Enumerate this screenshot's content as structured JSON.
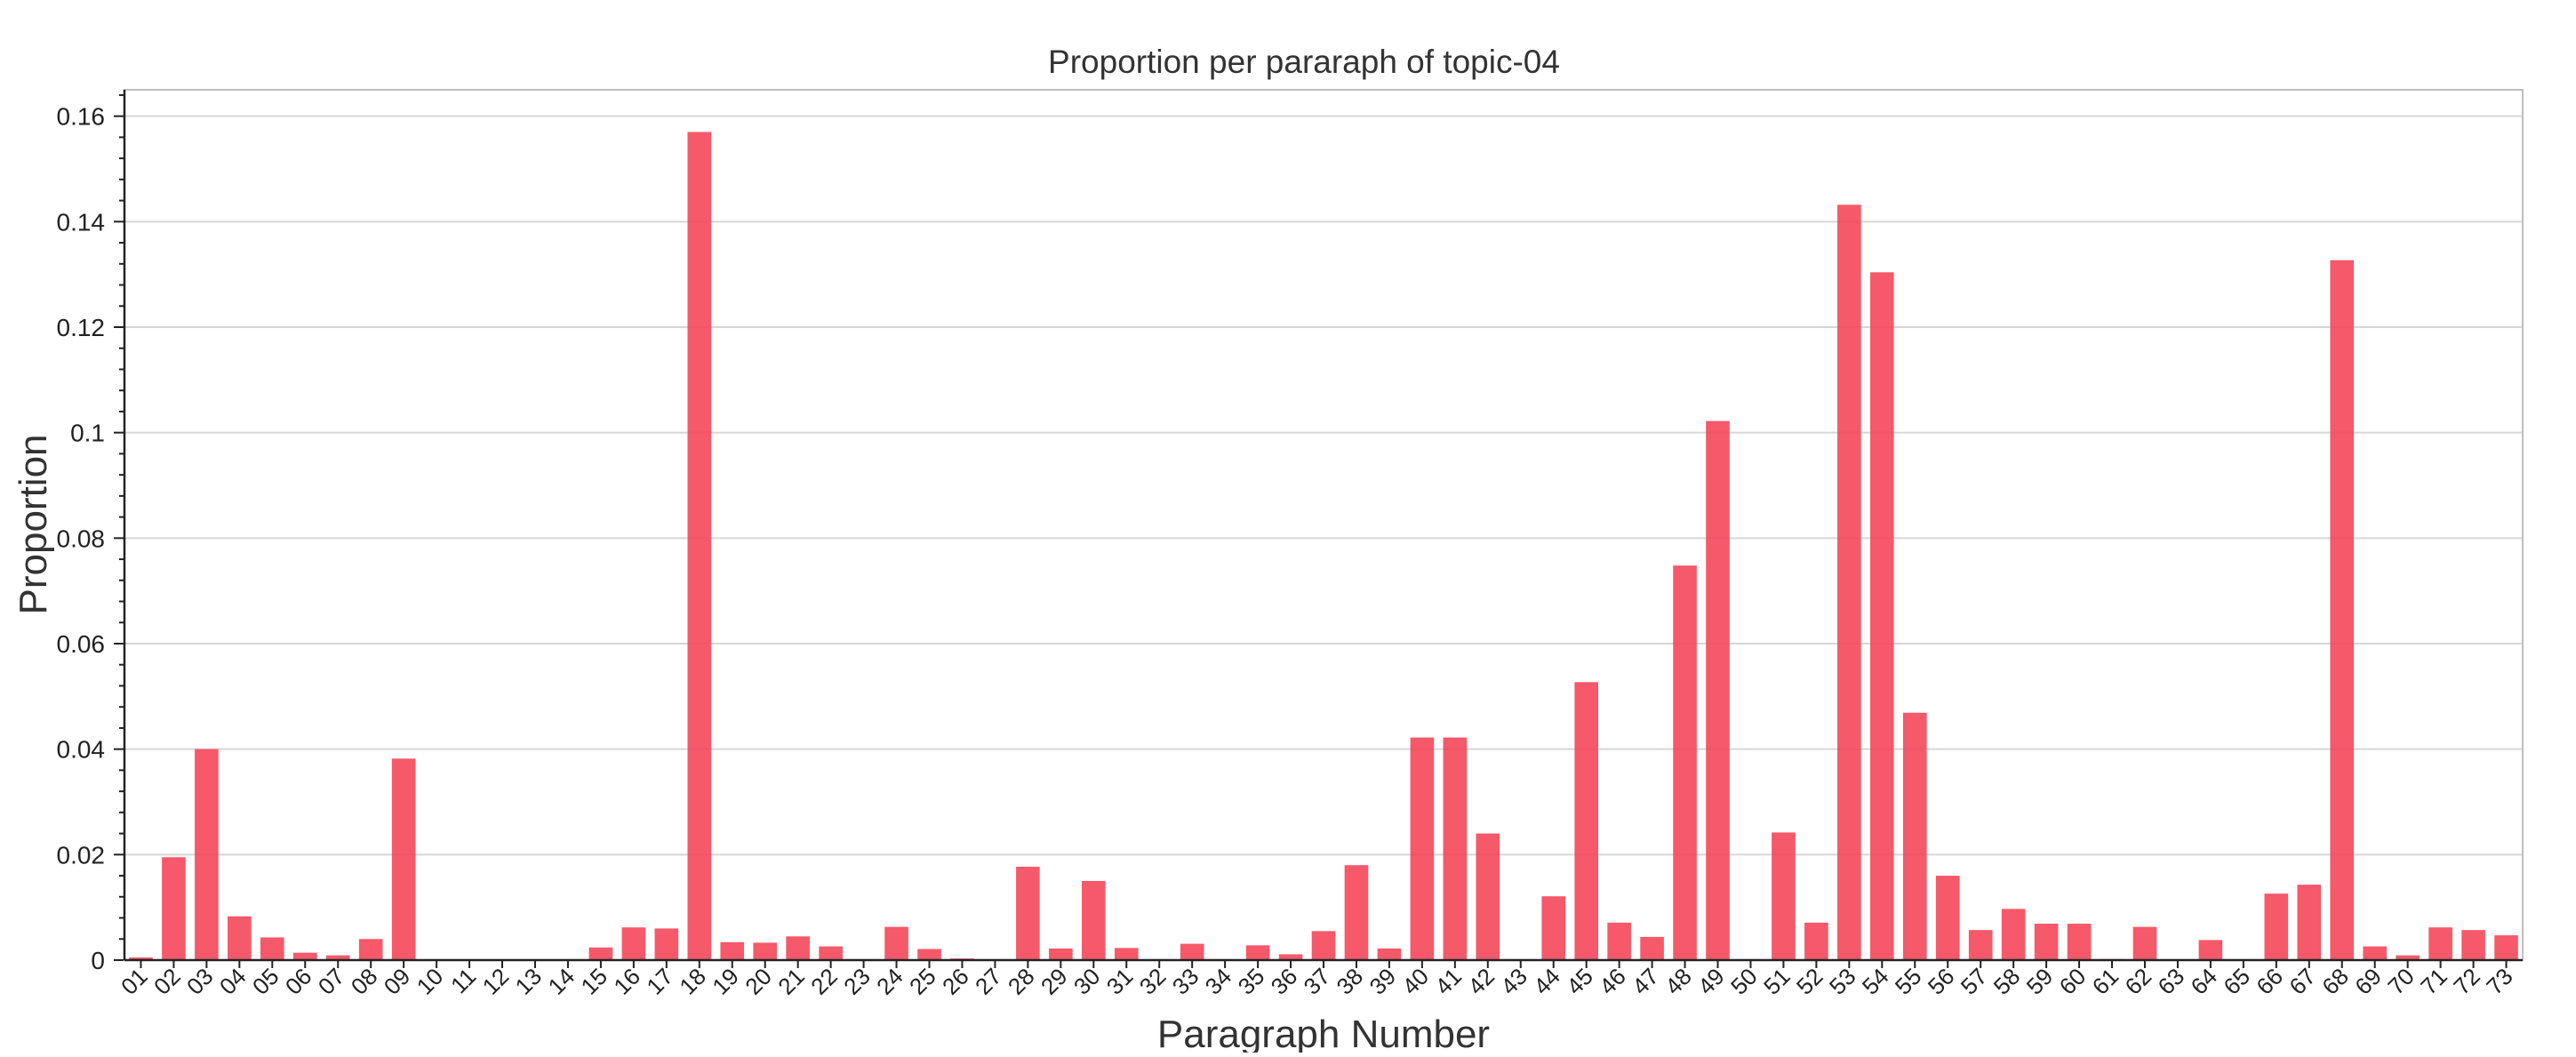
{
  "chart_data": {
    "type": "bar",
    "title": "Proportion per pararaph of topic-04",
    "xlabel": "Paragraph Number",
    "ylabel": "Proportion",
    "ylim": [
      0,
      0.165
    ],
    "yticks": [
      0,
      0.02,
      0.04,
      0.06,
      0.08,
      0.1,
      0.12,
      0.14,
      0.16
    ],
    "ytick_labels": [
      "0",
      "0.02",
      "0.04",
      "0.06",
      "0.08",
      "0.1",
      "0.12",
      "0.14",
      "0.16"
    ],
    "grid": "horizontal",
    "bar_color": "#f4475a",
    "categories": [
      "01",
      "02",
      "03",
      "04",
      "05",
      "06",
      "07",
      "08",
      "09",
      "10",
      "11",
      "12",
      "13",
      "14",
      "15",
      "16",
      "17",
      "18",
      "19",
      "20",
      "21",
      "22",
      "23",
      "24",
      "25",
      "26",
      "27",
      "28",
      "29",
      "30",
      "31",
      "32",
      "33",
      "34",
      "35",
      "36",
      "37",
      "38",
      "39",
      "40",
      "41",
      "42",
      "43",
      "44",
      "45",
      "46",
      "47",
      "48",
      "49",
      "50",
      "51",
      "52",
      "53",
      "54",
      "55",
      "56",
      "57",
      "58",
      "59",
      "60",
      "61",
      "62",
      "63",
      "64",
      "65",
      "66",
      "67",
      "68",
      "69",
      "70",
      "71",
      "72",
      "73"
    ],
    "values": [
      0.0005,
      0.0195,
      0.04,
      0.0083,
      0.0043,
      0.0014,
      0.0009,
      0.004,
      0.0382,
      0,
      0,
      0,
      0,
      0,
      0.0024,
      0.0062,
      0.006,
      0.157,
      0.0034,
      0.0033,
      0.0045,
      0.0026,
      0,
      0.0063,
      0.0021,
      0.0003,
      0,
      0.0177,
      0.0022,
      0.015,
      0.0023,
      0,
      0.0031,
      0,
      0.0028,
      0.0011,
      0.0055,
      0.018,
      0.0022,
      0.0422,
      0.0422,
      0.024,
      0,
      0.0121,
      0.0527,
      0.0071,
      0.0044,
      0.0748,
      0.1022,
      0,
      0.0242,
      0.0071,
      0.1432,
      0.1304,
      0.0469,
      0.016,
      0.0057,
      0.0097,
      0.0069,
      0.0069,
      0.0002,
      0.0063,
      0,
      0.0038,
      0,
      0.0126,
      0.0143,
      0.1327,
      0.0026,
      0.0009,
      0.0062,
      0.0057,
      0.0047
    ]
  }
}
